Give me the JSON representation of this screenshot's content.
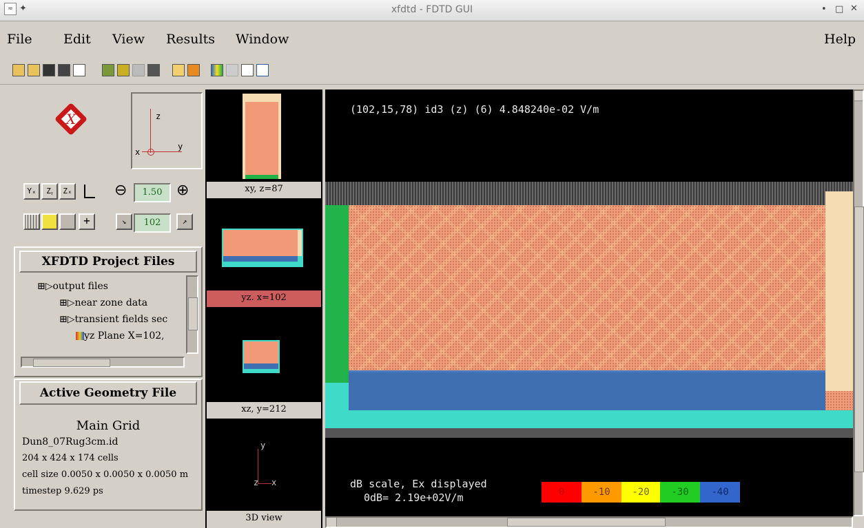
{
  "window": {
    "title": "xfdtd - FDTD GUI"
  },
  "menu": {
    "file": "File",
    "edit": "Edit",
    "view": "View",
    "results": "Results",
    "window": "Window",
    "help": "Help"
  },
  "view_controls": {
    "axis_buttons": [
      "Yₓ",
      "Zᵧ",
      "Zₓ"
    ],
    "zoom_value": "1.50",
    "slice_value": "102",
    "orient": {
      "z": "z",
      "x": "x",
      "y": "y"
    }
  },
  "project_files": {
    "header": "XFDTD Project Files",
    "items": [
      "output files",
      "near zone data",
      "transient fields sec",
      "yz Plane X=102,"
    ]
  },
  "geometry": {
    "header": "Active Geometry File",
    "grid_title": "Main Grid",
    "file_name": "Dun8_07Rug3cm.id",
    "cells": "204 x 424 x 174 cells",
    "cell_size": "cell size 0.0050 x 0.0050 x 0.0050 m",
    "timestep": "timestep 9.629 ps"
  },
  "thumbnails": [
    {
      "label": "xy, z=87",
      "selected": false
    },
    {
      "label": "yz. x=102",
      "selected": true
    },
    {
      "label": "xz, y=212",
      "selected": false
    },
    {
      "label": "3D view",
      "selected": false
    }
  ],
  "main_view": {
    "probe_readout": "(102,15,78) id3 (z) (6) 4.848240e-02 V/m",
    "scale_caption_1": "dB scale, Ex displayed",
    "scale_caption_2": "0dB= 2.19e+02V/m",
    "scale": [
      {
        "label": "0",
        "color": "#ff0000"
      },
      {
        "label": "-10",
        "color": "#ff9900"
      },
      {
        "label": "-20",
        "color": "#ffff00"
      },
      {
        "label": "-30",
        "color": "#22cc22"
      },
      {
        "label": "-40",
        "color": "#3366cc"
      }
    ]
  },
  "colors": {
    "field_salmon": "#f29a78",
    "ground_blue": "#3f6fb0",
    "cyan": "#3fdbc8",
    "green": "#22b24a",
    "cream": "#f6dcb2",
    "selected_thumb": "#cd5c5c"
  }
}
